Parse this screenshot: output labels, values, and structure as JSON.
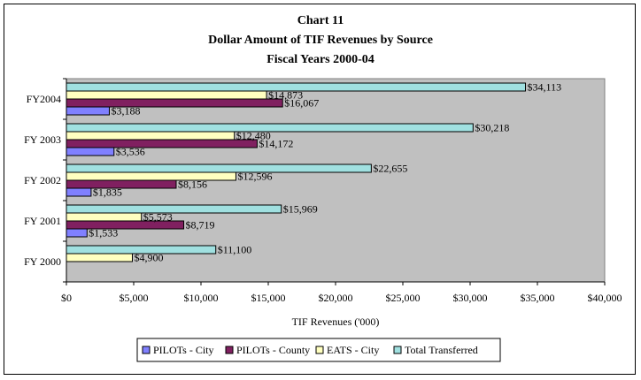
{
  "chart_data": {
    "type": "bar",
    "orientation": "horizontal",
    "title": [
      "Chart 11",
      "Dollar Amount of TIF Revenues by Source",
      "Fiscal Years 2000-04"
    ],
    "xlabel": "TIF Revenues ('000)",
    "ylabel": "",
    "xlim": [
      0,
      40000
    ],
    "x_ticks": [
      0,
      5000,
      10000,
      15000,
      20000,
      25000,
      30000,
      35000,
      40000
    ],
    "x_tick_labels": [
      "$0",
      "$5,000",
      "$10,000",
      "$15,000",
      "$20,000",
      "$25,000",
      "$30,000",
      "$35,000",
      "$40,000"
    ],
    "categories": [
      "FY2004",
      "FY 2003",
      "FY 2002",
      "FY 2001",
      "FY 2000"
    ],
    "series": [
      {
        "name": "PILOTs - City",
        "color": "#8080ff",
        "values": [
          3188,
          3536,
          1835,
          1533,
          null
        ],
        "labels": [
          "$3,188",
          "$3,536",
          "$1,835",
          "$1,533",
          ""
        ]
      },
      {
        "name": "PILOTs - County",
        "color": "#802060",
        "values": [
          16067,
          14172,
          8156,
          8719,
          null
        ],
        "labels": [
          "$16,067",
          "$14,172",
          "$8,156",
          "$8,719",
          ""
        ]
      },
      {
        "name": "EATS - City",
        "color": "#ffffc0",
        "values": [
          14873,
          12480,
          12596,
          5573,
          4900
        ],
        "labels": [
          "$14,873",
          "$12,480",
          "$12,596",
          "$5,573",
          "$4,900"
        ]
      },
      {
        "name": "Total Transferred",
        "color": "#a0e0e0",
        "values": [
          34113,
          30218,
          22655,
          15969,
          11100
        ],
        "labels": [
          "$34,113",
          "$30,218",
          "$22,655",
          "$15,969",
          "$11,100"
        ]
      }
    ],
    "plot_background": "#c0c0c0",
    "grid": false,
    "legend_position": "bottom"
  }
}
